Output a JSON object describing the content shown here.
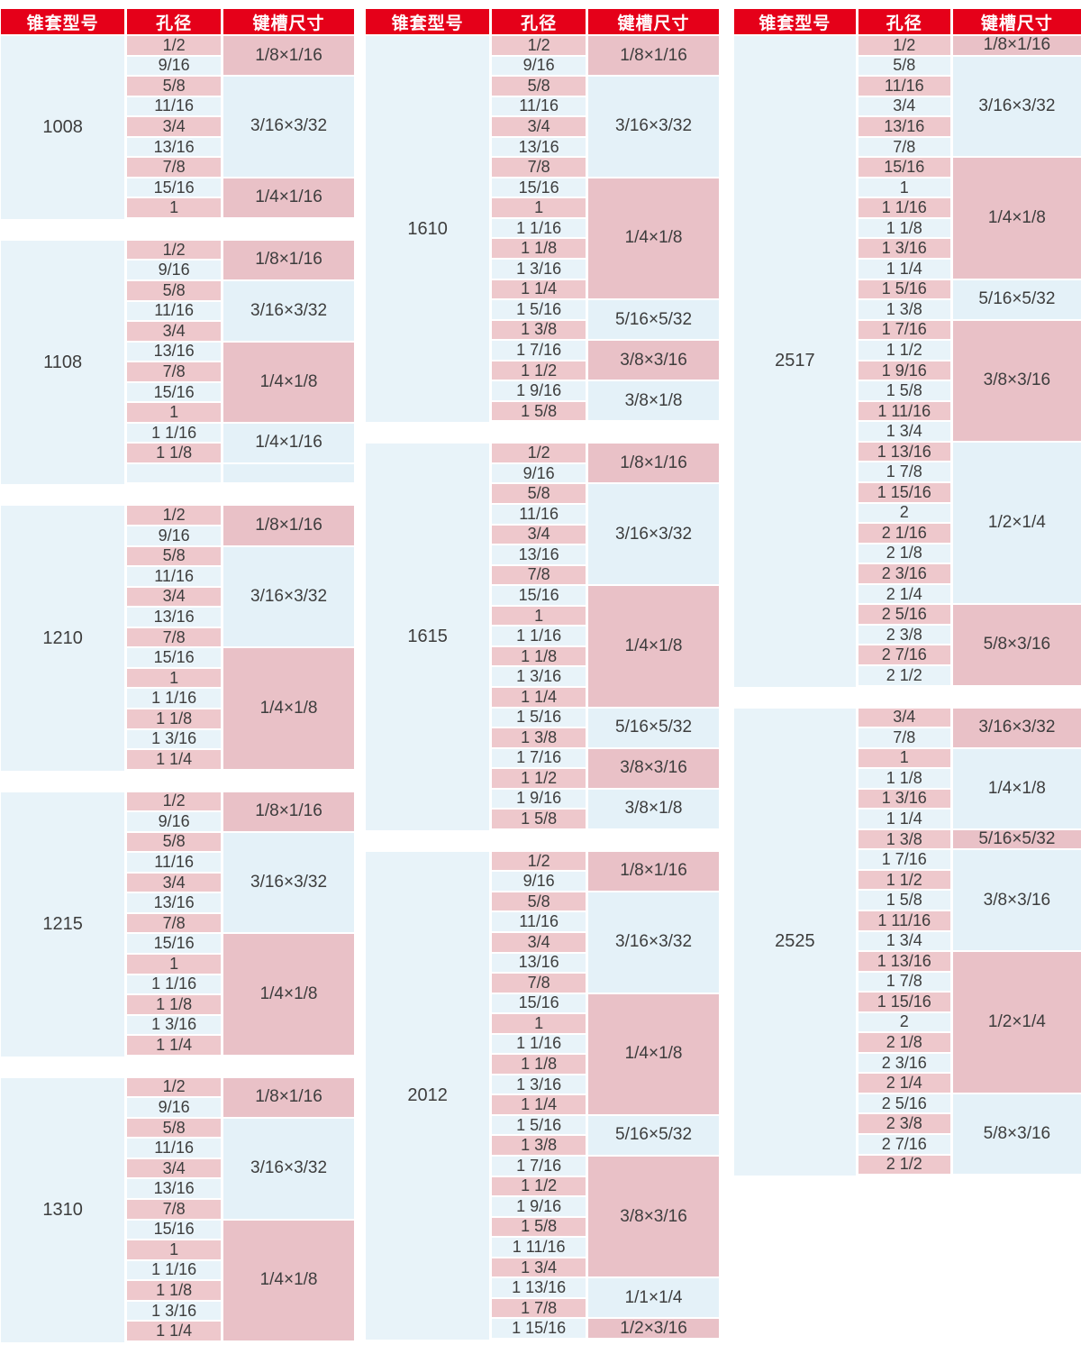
{
  "headers": {
    "model": "锥套型号",
    "bore": "孔径",
    "keyway": "键槽尺寸"
  },
  "colors": {
    "header_red": "#e50019",
    "row_pink": "#eec8cc",
    "group_pink": "#e9c1c7",
    "row_blue": "#e8f3f9",
    "text": "#3d3d3d"
  },
  "panels": [
    {
      "tables": [
        {
          "model": "1008",
          "rows": [
            "1/2",
            "9/16",
            "5/8",
            "11/16",
            "3/4",
            "13/16",
            "7/8",
            "15/16",
            "1"
          ],
          "groups": [
            {
              "label": "1/8×1/16",
              "span": 2
            },
            {
              "label": "3/16×3/32",
              "span": 5
            },
            {
              "label": "1/4×1/16",
              "span": 2
            }
          ]
        },
        {
          "model": "1108",
          "rows": [
            "1/2",
            "9/16",
            "5/8",
            "11/16",
            "3/4",
            "13/16",
            "7/8",
            "15/16",
            "1",
            "1 1/16",
            "1 1/8",
            ""
          ],
          "groups": [
            {
              "label": "1/8×1/16",
              "span": 2
            },
            {
              "label": "3/16×3/32",
              "span": 3
            },
            {
              "label": "1/4×1/8",
              "span": 4
            },
            {
              "label": "1/4×1/16",
              "span": 2
            },
            {
              "label": "",
              "span": 1
            }
          ]
        },
        {
          "model": "1210",
          "rows": [
            "1/2",
            "9/16",
            "5/8",
            "11/16",
            "3/4",
            "13/16",
            "7/8",
            "15/16",
            "1",
            "1 1/16",
            "1 1/8",
            "1 3/16",
            "1 1/4"
          ],
          "groups": [
            {
              "label": "1/8×1/16",
              "span": 2
            },
            {
              "label": "3/16×3/32",
              "span": 5
            },
            {
              "label": "1/4×1/8",
              "span": 6
            }
          ]
        },
        {
          "model": "1215",
          "rows": [
            "1/2",
            "9/16",
            "5/8",
            "11/16",
            "3/4",
            "13/16",
            "7/8",
            "15/16",
            "1",
            "1 1/16",
            "1 1/8",
            "1 3/16",
            "1 1/4"
          ],
          "groups": [
            {
              "label": "1/8×1/16",
              "span": 2
            },
            {
              "label": "3/16×3/32",
              "span": 5
            },
            {
              "label": "1/4×1/8",
              "span": 6
            }
          ]
        },
        {
          "model": "1310",
          "rows": [
            "1/2",
            "9/16",
            "5/8",
            "11/16",
            "3/4",
            "13/16",
            "7/8",
            "15/16",
            "1",
            "1 1/16",
            "1 1/8",
            "1 3/16",
            "1 1/4"
          ],
          "groups": [
            {
              "label": "1/8×1/16",
              "span": 2
            },
            {
              "label": "3/16×3/32",
              "span": 5
            },
            {
              "label": "1/4×1/8",
              "span": 6
            }
          ]
        }
      ]
    },
    {
      "tables": [
        {
          "model": "1610",
          "rows": [
            "1/2",
            "9/16",
            "5/8",
            "11/16",
            "3/4",
            "13/16",
            "7/8",
            "15/16",
            "1",
            "1 1/16",
            "1 1/8",
            "1 3/16",
            "1 1/4",
            "1 5/16",
            "1 3/8",
            "1 7/16",
            "1 1/2",
            "1 9/16",
            "1 5/8"
          ],
          "groups": [
            {
              "label": "1/8×1/16",
              "span": 2
            },
            {
              "label": "3/16×3/32",
              "span": 5
            },
            {
              "label": "1/4×1/8",
              "span": 6
            },
            {
              "label": "5/16×5/32",
              "span": 2
            },
            {
              "label": "3/8×3/16",
              "span": 2
            },
            {
              "label": "3/8×1/8",
              "span": 2
            }
          ]
        },
        {
          "model": "1615",
          "rows": [
            "1/2",
            "9/16",
            "5/8",
            "11/16",
            "3/4",
            "13/16",
            "7/8",
            "15/16",
            "1",
            "1 1/16",
            "1 1/8",
            "1 3/16",
            "1 1/4",
            "1 5/16",
            "1 3/8",
            "1 7/16",
            "1 1/2",
            "1 9/16",
            "1 5/8"
          ],
          "groups": [
            {
              "label": "1/8×1/16",
              "span": 2
            },
            {
              "label": "3/16×3/32",
              "span": 5
            },
            {
              "label": "1/4×1/8",
              "span": 6
            },
            {
              "label": "5/16×5/32",
              "span": 2
            },
            {
              "label": "3/8×3/16",
              "span": 2
            },
            {
              "label": "3/8×1/8",
              "span": 2
            }
          ]
        },
        {
          "model": "2012",
          "rows": [
            "1/2",
            "9/16",
            "5/8",
            "11/16",
            "3/4",
            "13/16",
            "7/8",
            "15/16",
            "1",
            "1 1/16",
            "1 1/8",
            "1 3/16",
            "1 1/4",
            "1 5/16",
            "1 3/8",
            "1 7/16",
            "1 1/2",
            "1 9/16",
            "1 5/8",
            "1 11/16",
            "1 3/4",
            "1 13/16",
            "1 7/8",
            "1 15/16"
          ],
          "groups": [
            {
              "label": "1/8×1/16",
              "span": 2
            },
            {
              "label": "3/16×3/32",
              "span": 5
            },
            {
              "label": "1/4×1/8",
              "span": 6
            },
            {
              "label": "5/16×5/32",
              "span": 2
            },
            {
              "label": "3/8×3/16",
              "span": 6
            },
            {
              "label": "1/1×1/4",
              "span": 2
            },
            {
              "label": "1/2×3/16",
              "span": 1
            }
          ]
        }
      ]
    },
    {
      "tables": [
        {
          "model": "2517",
          "rows": [
            "1/2",
            "5/8",
            "11/16",
            "3/4",
            "13/16",
            "7/8",
            "15/16",
            "1",
            "1 1/16",
            "1 1/8",
            "1 3/16",
            "1 1/4",
            "1 5/16",
            "1 3/8",
            "1 7/16",
            "1 1/2",
            "1 9/16",
            "1 5/8",
            "1 11/16",
            "1 3/4",
            "1 13/16",
            "1 7/8",
            "1 15/16",
            "2",
            "2 1/16",
            "2 1/8",
            "2 3/16",
            "2 1/4",
            "2 5/16",
            "2 3/8",
            "2 7/16",
            "2 1/2"
          ],
          "groups": [
            {
              "label": "1/8×1/16",
              "span": 1
            },
            {
              "label": "3/16×3/32",
              "span": 5
            },
            {
              "label": "1/4×1/8",
              "span": 6
            },
            {
              "label": "5/16×5/32",
              "span": 2
            },
            {
              "label": "3/8×3/16",
              "span": 6
            },
            {
              "label": "1/2×1/4",
              "span": 8
            },
            {
              "label": "5/8×3/16",
              "span": 4
            }
          ]
        },
        {
          "model": "2525",
          "rows": [
            "3/4",
            "7/8",
            "1",
            "1 1/8",
            "1 3/16",
            "1 1/4",
            "1 3/8",
            "1 7/16",
            "1 1/2",
            "1 5/8",
            "1 11/16",
            "1 3/4",
            "1 13/16",
            "1 7/8",
            "1 15/16",
            "2",
            "2 1/8",
            "2 3/16",
            "2 1/4",
            "2 5/16",
            "2 3/8",
            "2 7/16",
            "2 1/2"
          ],
          "groups": [
            {
              "label": "3/16×3/32",
              "span": 2
            },
            {
              "label": "1/4×1/8",
              "span": 4
            },
            {
              "label": "5/16×5/32",
              "span": 1
            },
            {
              "label": "3/8×3/16",
              "span": 5
            },
            {
              "label": "1/2×1/4",
              "span": 7
            },
            {
              "label": "5/8×3/16",
              "span": 4
            }
          ]
        }
      ]
    }
  ]
}
